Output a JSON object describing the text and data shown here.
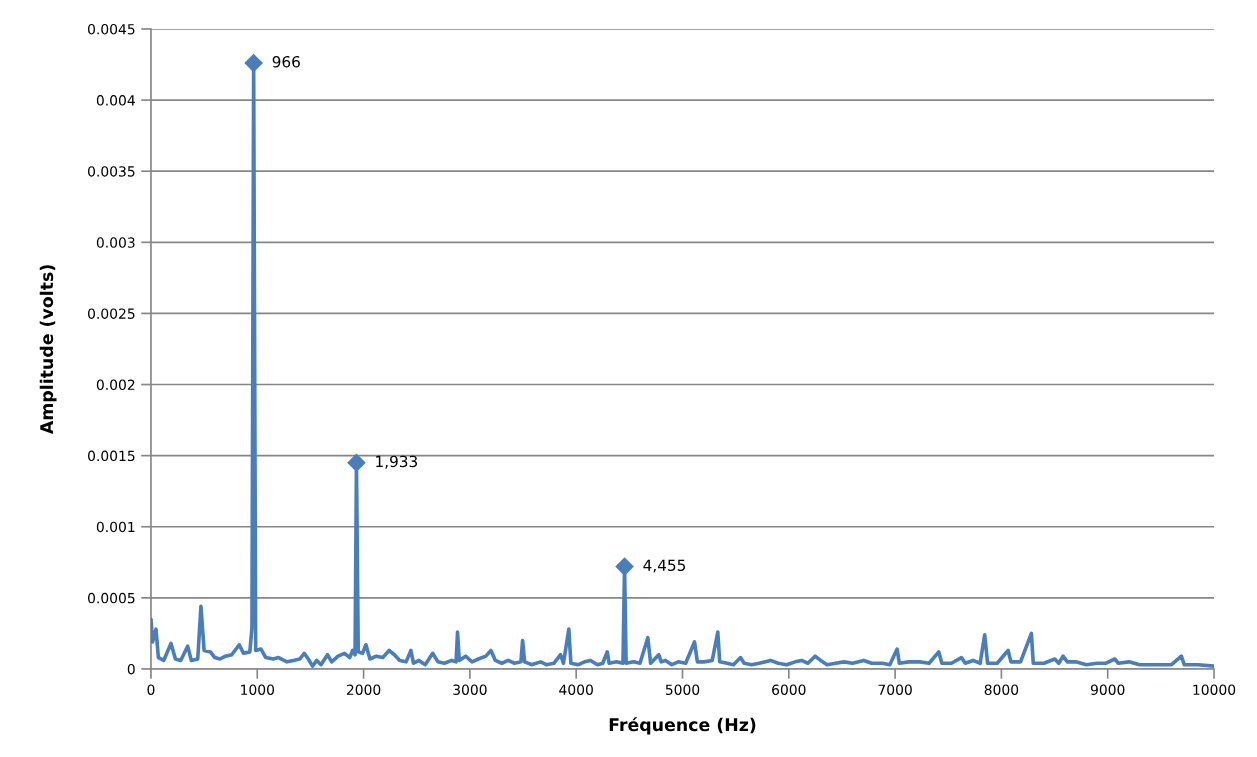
{
  "chart_data": {
    "type": "line",
    "xlabel": "Fréquence (Hz)",
    "ylabel": "Amplitude (volts)",
    "xlim": [
      0,
      10000
    ],
    "xticks": [
      0,
      1000,
      2000,
      3000,
      4000,
      5000,
      6000,
      7000,
      8000,
      9000,
      10000
    ],
    "ylim": [
      0,
      0.0045
    ],
    "yticks": [
      0,
      0.0005,
      0.001,
      0.0015,
      0.002,
      0.0025,
      0.003,
      0.0035,
      0.004,
      0.0045
    ],
    "grid": "y",
    "series": [
      {
        "color": "#4a7ebb",
        "marker": "none",
        "line_style": "solid",
        "x": [
          0,
          15,
          47,
          70,
          120,
          188,
          230,
          280,
          345,
          380,
          440,
          470,
          500,
          560,
          600,
          650,
          700,
          760,
          830,
          870,
          930,
          950,
          966,
          985,
          1035,
          1080,
          1150,
          1200,
          1280,
          1340,
          1400,
          1442,
          1480,
          1520,
          1560,
          1600,
          1660,
          1700,
          1760,
          1820,
          1870,
          1897,
          1920,
          1933,
          1950,
          1990,
          2022,
          2060,
          2120,
          2180,
          2240,
          2290,
          2340,
          2400,
          2445,
          2470,
          2520,
          2580,
          2650,
          2700,
          2760,
          2830,
          2870,
          2884,
          2900,
          2960,
          3020,
          3080,
          3150,
          3198,
          3240,
          3300,
          3360,
          3420,
          3480,
          3496,
          3515,
          3580,
          3665,
          3720,
          3790,
          3853,
          3880,
          3931,
          3950,
          4020,
          4080,
          4135,
          4200,
          4250,
          4292,
          4310,
          4380,
          4440,
          4455,
          4470,
          4540,
          4600,
          4674,
          4700,
          4777,
          4800,
          4840,
          4900,
          4960,
          5030,
          5113,
          5140,
          5200,
          5280,
          5332,
          5350,
          5420,
          5480,
          5546,
          5580,
          5650,
          5720,
          5828,
          5900,
          5980,
          6060,
          6120,
          6180,
          6247,
          6300,
          6360,
          6440,
          6520,
          6600,
          6705,
          6780,
          6880,
          6950,
          7019,
          7040,
          7130,
          7232,
          7320,
          7411,
          7440,
          7530,
          7624,
          7660,
          7734,
          7800,
          7843,
          7870,
          7960,
          8063,
          8090,
          8180,
          8282,
          8300,
          8400,
          8502,
          8540,
          8580,
          8620,
          8700,
          8800,
          8900,
          8980,
          9066,
          9100,
          9200,
          9300,
          9400,
          9500,
          9600,
          9693,
          9720,
          9850,
          10000
        ],
        "values": [
          0.00035,
          0.00019,
          0.00028,
          8e-05,
          6e-05,
          0.00018,
          7e-05,
          6e-05,
          0.00016,
          6e-05,
          7e-05,
          0.00044,
          0.00013,
          0.00012,
          8e-05,
          7e-05,
          9e-05,
          0.0001,
          0.00017,
          0.00011,
          0.00012,
          0.00029,
          0.00426,
          0.00013,
          0.00014,
          8e-05,
          7e-05,
          8e-05,
          5e-05,
          6e-05,
          7e-05,
          0.00011,
          7e-05,
          2e-05,
          6e-05,
          3e-05,
          0.0001,
          5e-05,
          9e-05,
          0.00011,
          8e-05,
          0.00013,
          0.0001,
          0.00145,
          0.00012,
          0.00011,
          0.00017,
          7e-05,
          9e-05,
          8e-05,
          0.00013,
          0.0001,
          6e-05,
          5e-05,
          0.00013,
          4e-05,
          6e-05,
          3e-05,
          0.00011,
          5e-05,
          4e-05,
          6e-05,
          5e-05,
          0.00026,
          6e-05,
          9e-05,
          5e-05,
          7e-05,
          9e-05,
          0.00013,
          6e-05,
          4e-05,
          6e-05,
          4e-05,
          5e-05,
          0.0002,
          5e-05,
          3e-05,
          5e-05,
          3e-05,
          4e-05,
          0.0001,
          4e-05,
          0.00028,
          4e-05,
          3e-05,
          5e-05,
          6e-05,
          3e-05,
          4e-05,
          0.00012,
          4e-05,
          5e-05,
          4e-05,
          0.00072,
          4e-05,
          5e-05,
          4e-05,
          0.00022,
          4e-05,
          0.0001,
          5e-05,
          6e-05,
          3e-05,
          5e-05,
          4e-05,
          0.00019,
          5e-05,
          5e-05,
          6e-05,
          0.00026,
          5e-05,
          4e-05,
          3e-05,
          8e-05,
          4e-05,
          3e-05,
          4e-05,
          6e-05,
          4e-05,
          3e-05,
          5e-05,
          6e-05,
          4e-05,
          9e-05,
          6e-05,
          3e-05,
          4e-05,
          5e-05,
          4e-05,
          6e-05,
          4e-05,
          4e-05,
          3e-05,
          0.00014,
          4e-05,
          5e-05,
          5e-05,
          4e-05,
          0.00012,
          4e-05,
          4e-05,
          8e-05,
          4e-05,
          6e-05,
          4e-05,
          0.00024,
          4e-05,
          4e-05,
          0.00013,
          5e-05,
          5e-05,
          0.00025,
          4e-05,
          4e-05,
          7e-05,
          4e-05,
          9e-05,
          5e-05,
          5e-05,
          3e-05,
          4e-05,
          4e-05,
          7e-05,
          4e-05,
          5e-05,
          3e-05,
          3e-05,
          3e-05,
          3e-05,
          9e-05,
          3e-05,
          3e-05,
          2e-05
        ]
      },
      {
        "type": "scatter",
        "color": "#4a7ebb",
        "marker": "diamond",
        "x": [
          966,
          1933,
          4455
        ],
        "values": [
          0.00426,
          0.00145,
          0.00072
        ]
      }
    ],
    "annotations": [
      {
        "text": "966",
        "x": 966,
        "y": 0.00426
      },
      {
        "text": "1,933",
        "x": 1933,
        "y": 0.00145
      },
      {
        "text": "4,455",
        "x": 4455,
        "y": 0.00072
      }
    ]
  }
}
